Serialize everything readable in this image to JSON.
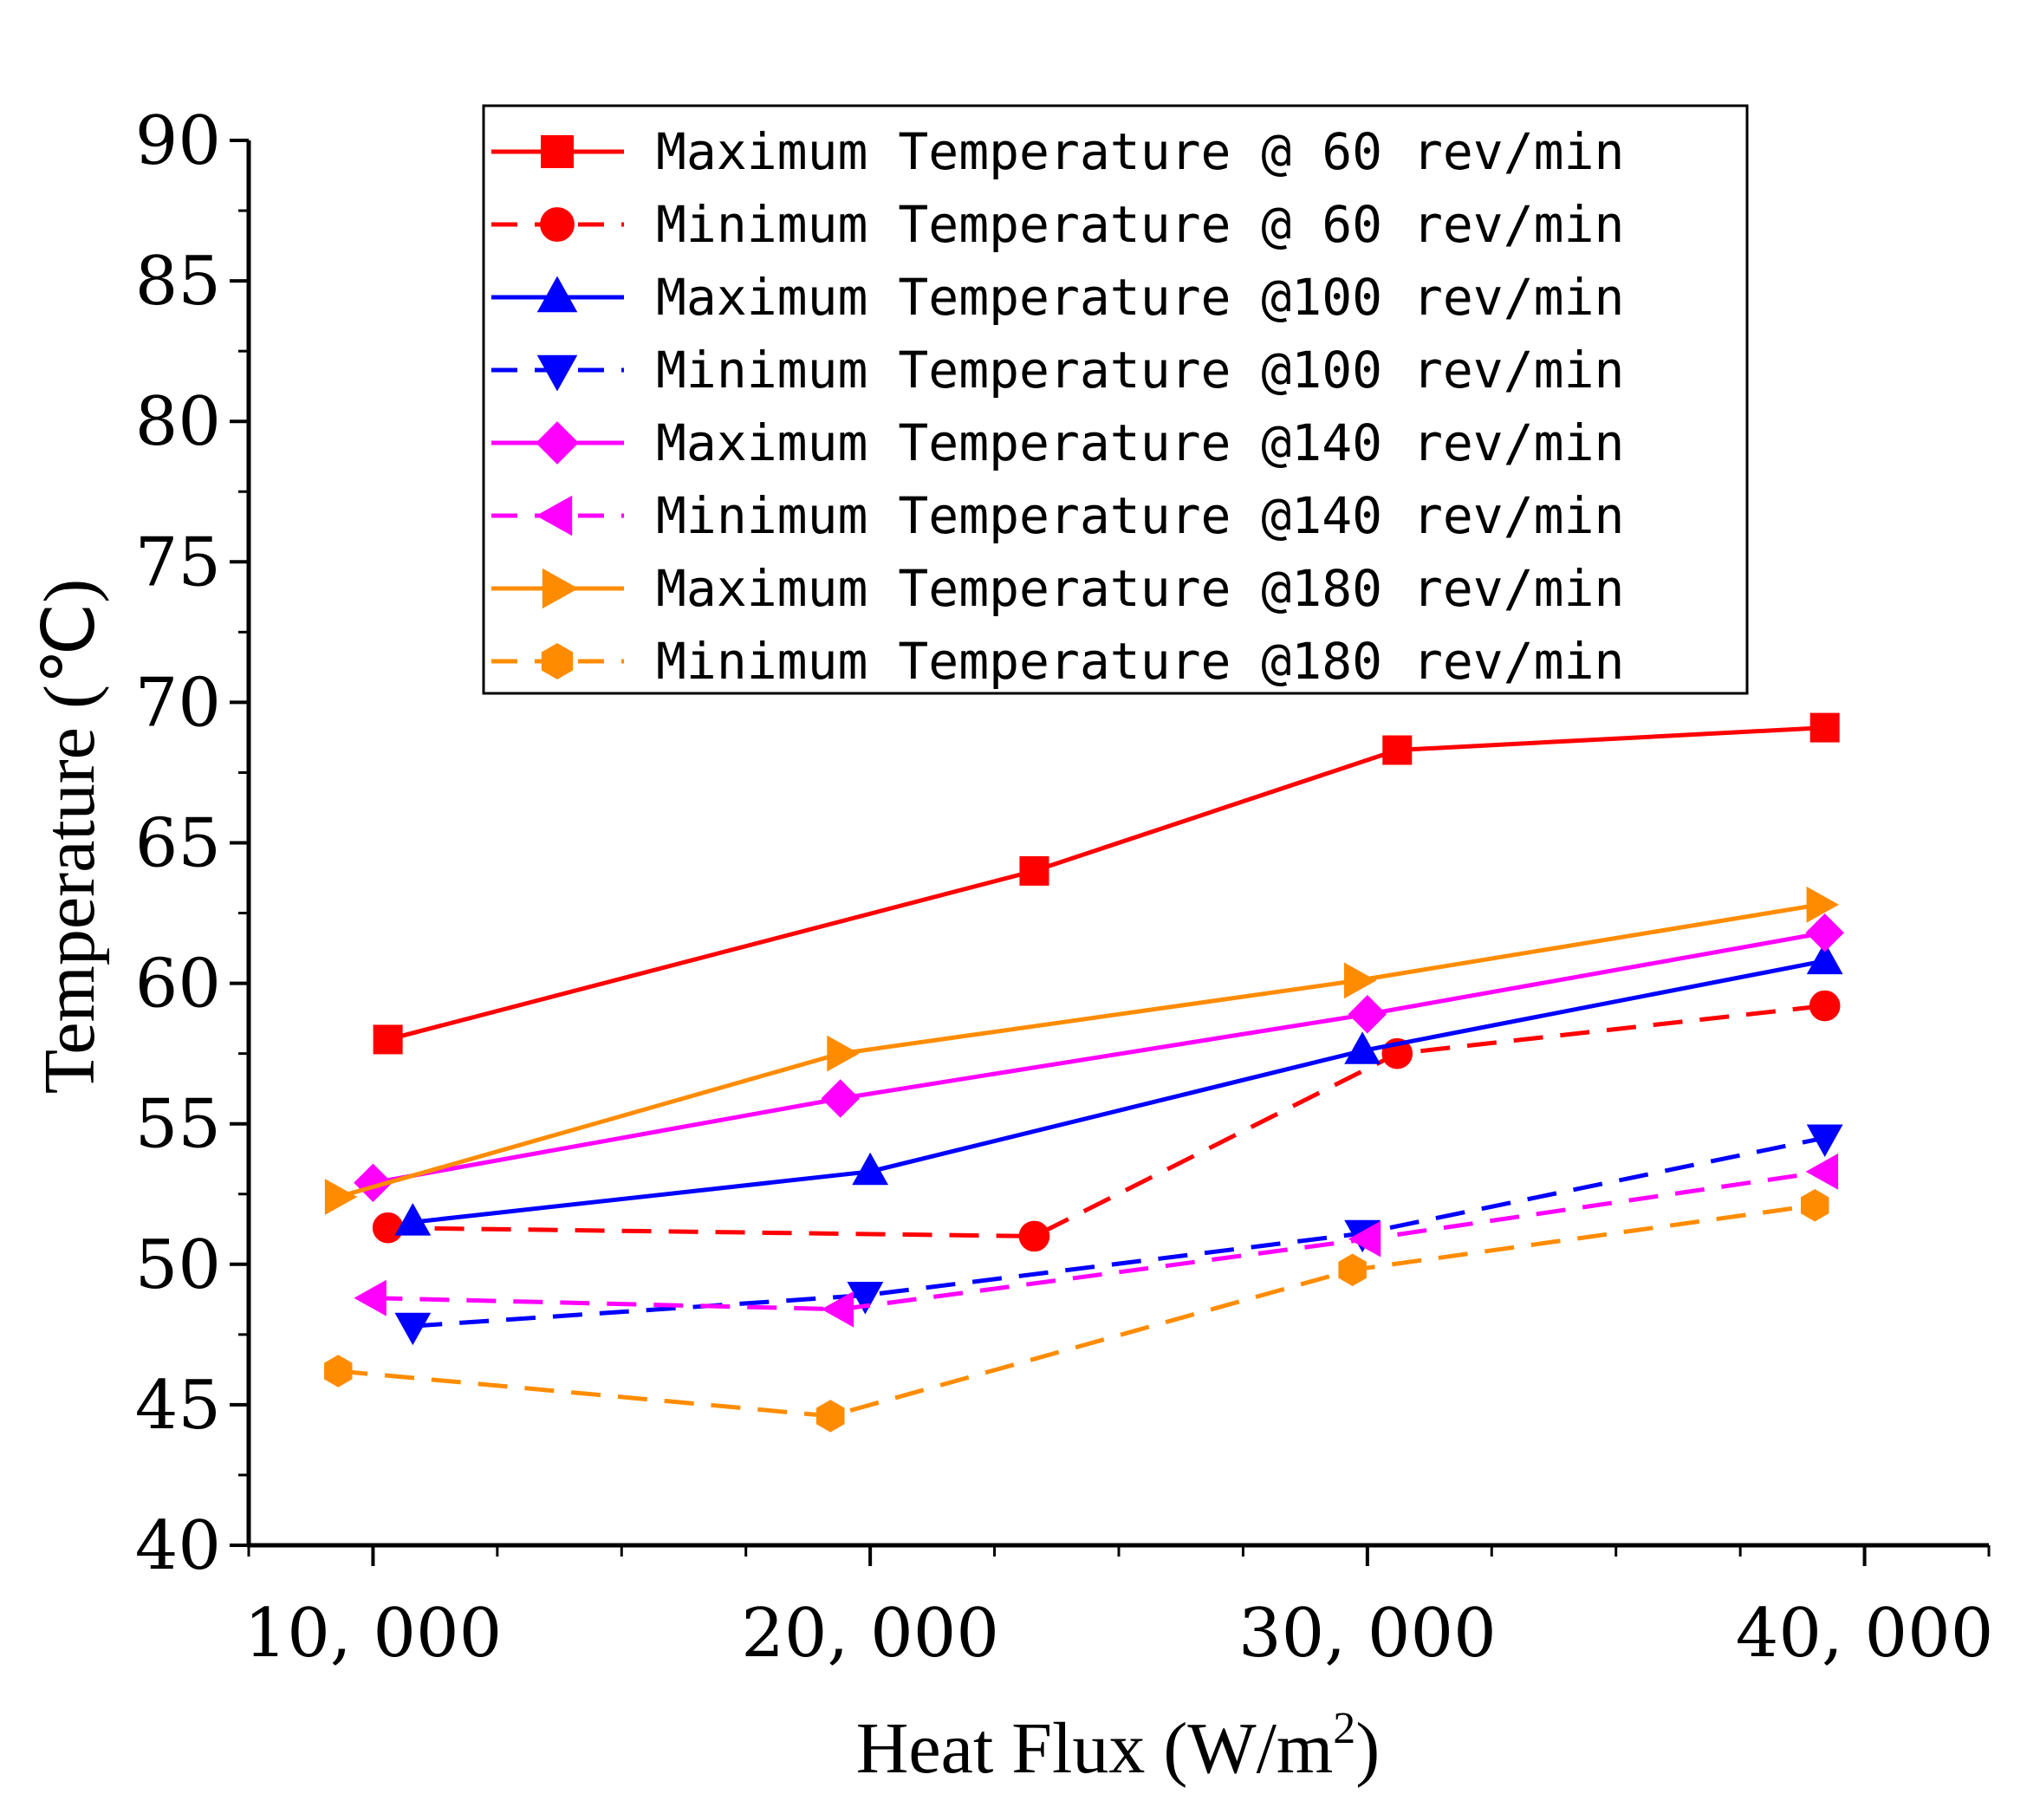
{
  "chart_data": {
    "type": "line",
    "title": "",
    "xlabel": "Heat Flux (W/m",
    "xlabel_sup": "2",
    "xlabel_close": ")",
    "ylabel": "Temperature (℃)",
    "xlim": [
      7500,
      42500
    ],
    "ylim": [
      40,
      90
    ],
    "xticks": [
      10000,
      20000,
      30000,
      40000
    ],
    "xtick_labels": [
      "10, 000",
      "20, 000",
      "30, 000",
      "40, 000"
    ],
    "yticks": [
      40,
      45,
      50,
      55,
      60,
      65,
      70,
      75,
      80,
      85,
      90
    ],
    "ytick_labels": [
      "40",
      "45",
      "50",
      "55",
      "60",
      "65",
      "70",
      "75",
      "80",
      "85",
      "90"
    ],
    "grid": false,
    "legend_position": "top-right",
    "series": [
      {
        "name": "Maximum Temperature @ 60 rev/min",
        "color": "#ff0000",
        "dash": "solid",
        "marker": "square",
        "points": [
          [
            10300,
            58.0
          ],
          [
            23300,
            64.0
          ],
          [
            30600,
            68.3
          ],
          [
            39200,
            69.1
          ]
        ]
      },
      {
        "name": "Minimum Temperature @ 60 rev/min",
        "color": "#ff0000",
        "dash": "dashed",
        "marker": "circle",
        "points": [
          [
            10300,
            51.3
          ],
          [
            23300,
            51.0
          ],
          [
            30600,
            57.5
          ],
          [
            39200,
            59.2
          ]
        ]
      },
      {
        "name": "Maximum Temperature @100 rev/min",
        "color": "#0000ff",
        "dash": "solid",
        "marker": "triangle-up",
        "points": [
          [
            10800,
            51.5
          ],
          [
            20000,
            53.3
          ],
          [
            29900,
            57.6
          ],
          [
            39200,
            60.8
          ]
        ]
      },
      {
        "name": "Minimum Temperature @100 rev/min",
        "color": "#0000ff",
        "dash": "dashed",
        "marker": "triangle-down",
        "points": [
          [
            10800,
            47.8
          ],
          [
            19900,
            48.9
          ],
          [
            29900,
            51.1
          ],
          [
            39200,
            54.5
          ]
        ]
      },
      {
        "name": "Maximum Temperature @140 rev/min",
        "color": "#ff00ff",
        "dash": "solid",
        "marker": "diamond",
        "points": [
          [
            10000,
            52.9
          ],
          [
            19400,
            55.9
          ],
          [
            30000,
            58.9
          ],
          [
            39200,
            61.8
          ]
        ]
      },
      {
        "name": "Minimum Temperature @140 rev/min",
        "color": "#ff00ff",
        "dash": "dashed",
        "marker": "triangle-left",
        "points": [
          [
            10000,
            48.8
          ],
          [
            19400,
            48.4
          ],
          [
            30000,
            50.9
          ],
          [
            39200,
            53.3
          ]
        ]
      },
      {
        "name": "Maximum Temperature @180 rev/min",
        "color": "#ff8c00",
        "dash": "solid",
        "marker": "triangle-right",
        "points": [
          [
            9300,
            52.4
          ],
          [
            19400,
            57.5
          ],
          [
            29800,
            60.1
          ],
          [
            39100,
            62.8
          ]
        ]
      },
      {
        "name": "Minimum Temperature @180 rev/min",
        "color": "#ff8c00",
        "dash": "dashed",
        "marker": "hexagon",
        "points": [
          [
            9300,
            46.2
          ],
          [
            19200,
            44.6
          ],
          [
            29700,
            49.8
          ],
          [
            39000,
            52.1
          ]
        ]
      }
    ]
  }
}
